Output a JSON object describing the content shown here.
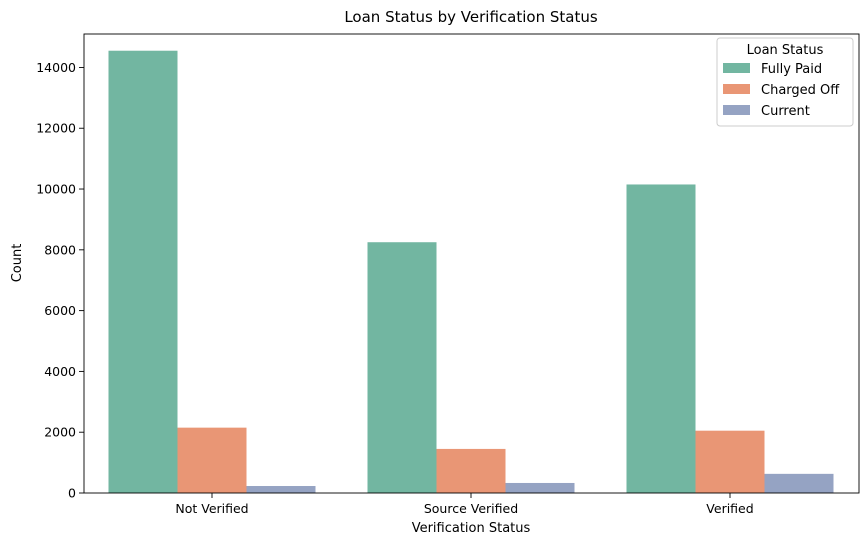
{
  "chart_data": {
    "type": "bar",
    "title": "Loan Status by Verification Status",
    "xlabel": "Verification Status",
    "ylabel": "Count",
    "categories": [
      "Not Verified",
      "Source Verified",
      "Verified"
    ],
    "series": [
      {
        "name": "Fully Paid",
        "values": [
          14550,
          8250,
          10150
        ],
        "color": "#72b6a1"
      },
      {
        "name": "Charged Off",
        "values": [
          2150,
          1450,
          2050
        ],
        "color": "#e99675"
      },
      {
        "name": "Current",
        "values": [
          230,
          330,
          630
        ],
        "color": "#95a3c3"
      }
    ],
    "ylim": [
      0,
      15100
    ],
    "yticks": [
      0,
      2000,
      4000,
      6000,
      8000,
      10000,
      12000,
      14000
    ],
    "grid": false,
    "legend": {
      "title": "Loan Status",
      "position": "top-right"
    }
  }
}
